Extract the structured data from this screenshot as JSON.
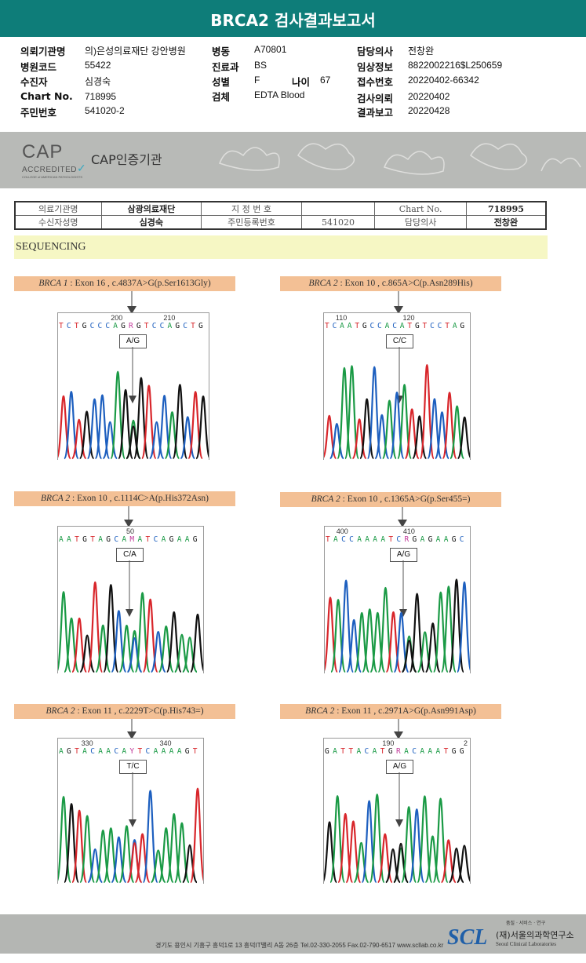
{
  "header": {
    "title": "BRCA2 검사결과보고서"
  },
  "patient_info": [
    {
      "label": "의뢰기관명",
      "value": "의)은성의료재단 강안병원"
    },
    {
      "label": "병원코드",
      "value": "55422"
    },
    {
      "label": "수진자",
      "value": "심경숙"
    },
    {
      "label": "Chart No.",
      "value": "718995"
    },
    {
      "label": "주민번호",
      "value": "541020-2"
    },
    {
      "label": "병동",
      "value": "A70801"
    },
    {
      "label": "진료과",
      "value": "BS"
    },
    {
      "label": "성별",
      "value": "F"
    },
    {
      "label": "나이",
      "value": "67"
    },
    {
      "label": "검체",
      "value": "EDTA Blood"
    },
    {
      "label": "담당의사",
      "value": "전창완"
    },
    {
      "label": "임상정보",
      "value": "8822002216$L250659"
    },
    {
      "label": "접수번호",
      "value": "20220402-66342"
    },
    {
      "label": "검사의뢰",
      "value": "20220402"
    },
    {
      "label": "결과보고",
      "value": "20220428"
    }
  ],
  "cap": {
    "logo_text": "CAP",
    "logo_sub": "ACCREDITED",
    "logo_small": "COLLEGE of AMERICAN PATHOLOGISTS",
    "title": "CAP인증기관"
  },
  "scan_table": {
    "r1": [
      "의료기관명",
      "삼광의료재단",
      "지 정 번 호",
      "",
      "Chart No.",
      "718995"
    ],
    "r2": [
      "수신자성명",
      "심경숙",
      "주민등록번호",
      "541020",
      "담당의사",
      "전창완"
    ]
  },
  "section_title": "SEQUENCING",
  "base_colors": {
    "A": "#1a9a45",
    "C": "#1d5fbf",
    "G": "#111111",
    "T": "#d8262b",
    "N": "#c23a9a"
  },
  "mutations": [
    {
      "gene": "BRCA 1",
      "desc": " : Exon 16 , c.4837A>G(p.Ser1613Gly)",
      "sequence": "TCTGCCCAGRGTCCAGCTG",
      "pos1": "200",
      "pos2": "210",
      "genotype": "A/G"
    },
    {
      "gene": "BRCA 2",
      "desc": " : Exon 10 , c.865A>C(p.Asn289His)",
      "sequence": "TCAATGCCACATGTCCTAG",
      "pos1": "110",
      "pos2": "120",
      "genotype": "C/C"
    },
    {
      "gene": "BRCA 2",
      "desc": " : Exon 10 , c.1114C>A(p.His372Asn)",
      "sequence": "AATGTAGCAMATCAGAAG",
      "pos1": "50",
      "pos2": "",
      "genotype": "C/A"
    },
    {
      "gene": "BRCA 2",
      "desc": " : Exon 10 , c.1365A>G(p.Ser455=)",
      "sequence": "TACCAAAATCRGAGAAGC",
      "pos1": "400",
      "pos2": "410",
      "genotype": "A/G"
    },
    {
      "gene": "BRCA 2",
      "desc": " : Exon 11 , c.2229T>C(p.His743=)",
      "sequence": "AGTACAACAYTCAAAAGT",
      "pos1": "330",
      "pos2": "340",
      "genotype": "T/C"
    },
    {
      "gene": "BRCA 2",
      "desc": " : Exon 11 , c.2971A>G(p.Asn991Asp)",
      "sequence": "GATTACATGRACAAATGG",
      "pos1": "190",
      "pos2": "2",
      "genotype": "A/G"
    }
  ],
  "footer": {
    "address": "경기도 용인시 기흥구 흥덕1로 13 흥덕IT밸리 A동 26층  Tel.02-330-2055  Fax.02-790-6517  www.scllab.co.kr",
    "logo": "SCL",
    "tagline": "품질 · 서비스 · 연구",
    "org": "(재)서울의과학연구소",
    "org_en": "Seoul Clinical Laboratories"
  }
}
